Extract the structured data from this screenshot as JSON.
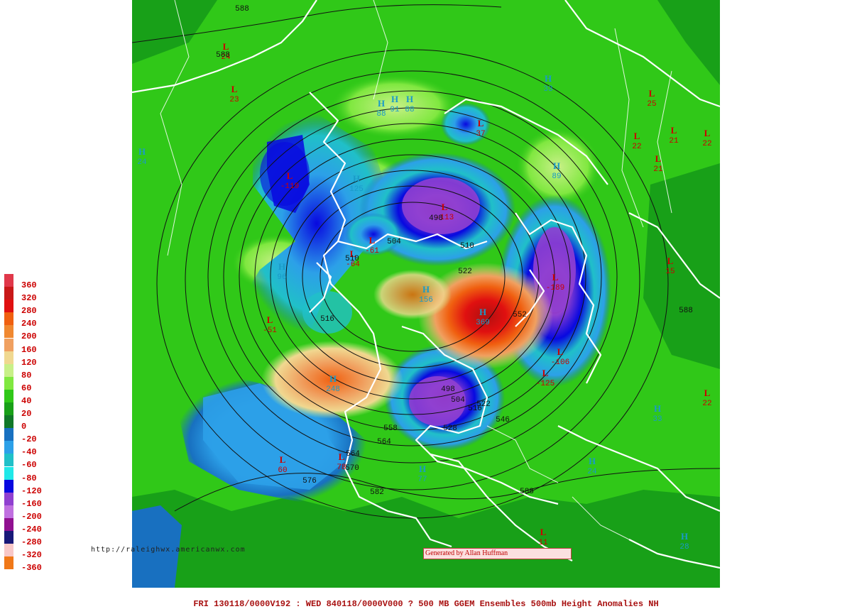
{
  "legend": {
    "items": [
      {
        "label": "360",
        "color": "#e0384a"
      },
      {
        "label": "320",
        "color": "#c81818"
      },
      {
        "label": "280",
        "color": "#e01010"
      },
      {
        "label": "240",
        "color": "#f06010"
      },
      {
        "label": "200",
        "color": "#f08830"
      },
      {
        "label": "160",
        "color": "#f0a060"
      },
      {
        "label": "120",
        "color": "#f0d890"
      },
      {
        "label": "80",
        "color": "#c8f088"
      },
      {
        "label": "60",
        "color": "#80e840"
      },
      {
        "label": "40",
        "color": "#30c818"
      },
      {
        "label": "20",
        "color": "#18a018"
      },
      {
        "label": "0",
        "color": "#107828"
      },
      {
        "label": "-20",
        "color": "#1870c0"
      },
      {
        "label": "-40",
        "color": "#2ca0e8"
      },
      {
        "label": "-60",
        "color": "#20c0c8"
      },
      {
        "label": "-80",
        "color": "#20e8e8"
      },
      {
        "label": "-120",
        "color": "#0808e0"
      },
      {
        "label": "-160",
        "color": "#9040d0"
      },
      {
        "label": "-200",
        "color": "#c070e0"
      },
      {
        "label": "-240",
        "color": "#901090"
      },
      {
        "label": "-280",
        "color": "#181878"
      },
      {
        "label": "-320",
        "color": "#f8c8c8"
      },
      {
        "label": "-360",
        "color": "#f07818"
      }
    ]
  },
  "url_text": "http://raleighwx.americanwx.com",
  "credit_text": "Generated by Allan Huffman",
  "footer_text": "FRI 130118/0000V192 : WED 840118/0000V000  ? 500 MB GGEM Ensembles 500mb Height Anomalies NH",
  "map_labels": {
    "lows": [
      {
        "t": "L",
        "v": "-119"
      },
      {
        "t": "L",
        "v": "-61"
      },
      {
        "t": "L",
        "v": "-64"
      },
      {
        "t": "L",
        "v": "-113"
      },
      {
        "t": "L",
        "v": "-51"
      },
      {
        "t": "L",
        "v": "-106"
      },
      {
        "t": "L",
        "v": "-125"
      },
      {
        "t": "L",
        "v": "-189"
      },
      {
        "t": "L",
        "v": "60"
      },
      {
        "t": "L",
        "v": "78"
      },
      {
        "t": "L",
        "v": "24"
      },
      {
        "t": "L",
        "v": "23"
      },
      {
        "t": "L",
        "v": "37"
      },
      {
        "t": "L",
        "v": "25"
      },
      {
        "t": "L",
        "v": "22"
      },
      {
        "t": "L",
        "v": "21"
      },
      {
        "t": "L",
        "v": "21"
      },
      {
        "t": "L",
        "v": "22"
      },
      {
        "t": "L",
        "v": "15"
      },
      {
        "t": "L",
        "v": "22"
      },
      {
        "t": "L",
        "v": "11"
      }
    ],
    "highs": [
      {
        "t": "H",
        "v": "88"
      },
      {
        "t": "H",
        "v": "91"
      },
      {
        "t": "H",
        "v": "88"
      },
      {
        "t": "H",
        "v": "125"
      },
      {
        "t": "H",
        "v": "89"
      },
      {
        "t": "H",
        "v": "96"
      },
      {
        "t": "H",
        "v": "156"
      },
      {
        "t": "H",
        "v": "369"
      },
      {
        "t": "H",
        "v": "248"
      },
      {
        "t": "H",
        "v": "77"
      },
      {
        "t": "H",
        "v": "24"
      },
      {
        "t": "H",
        "v": "33"
      },
      {
        "t": "H",
        "v": "24"
      },
      {
        "t": "H",
        "v": "33"
      },
      {
        "t": "H",
        "v": "28"
      }
    ],
    "contours": [
      "588",
      "588",
      "504",
      "510",
      "510",
      "498",
      "522",
      "552",
      "516",
      "498",
      "504",
      "516",
      "522",
      "546",
      "528",
      "558",
      "564",
      "564",
      "570",
      "576",
      "582",
      "588",
      "588"
    ]
  }
}
